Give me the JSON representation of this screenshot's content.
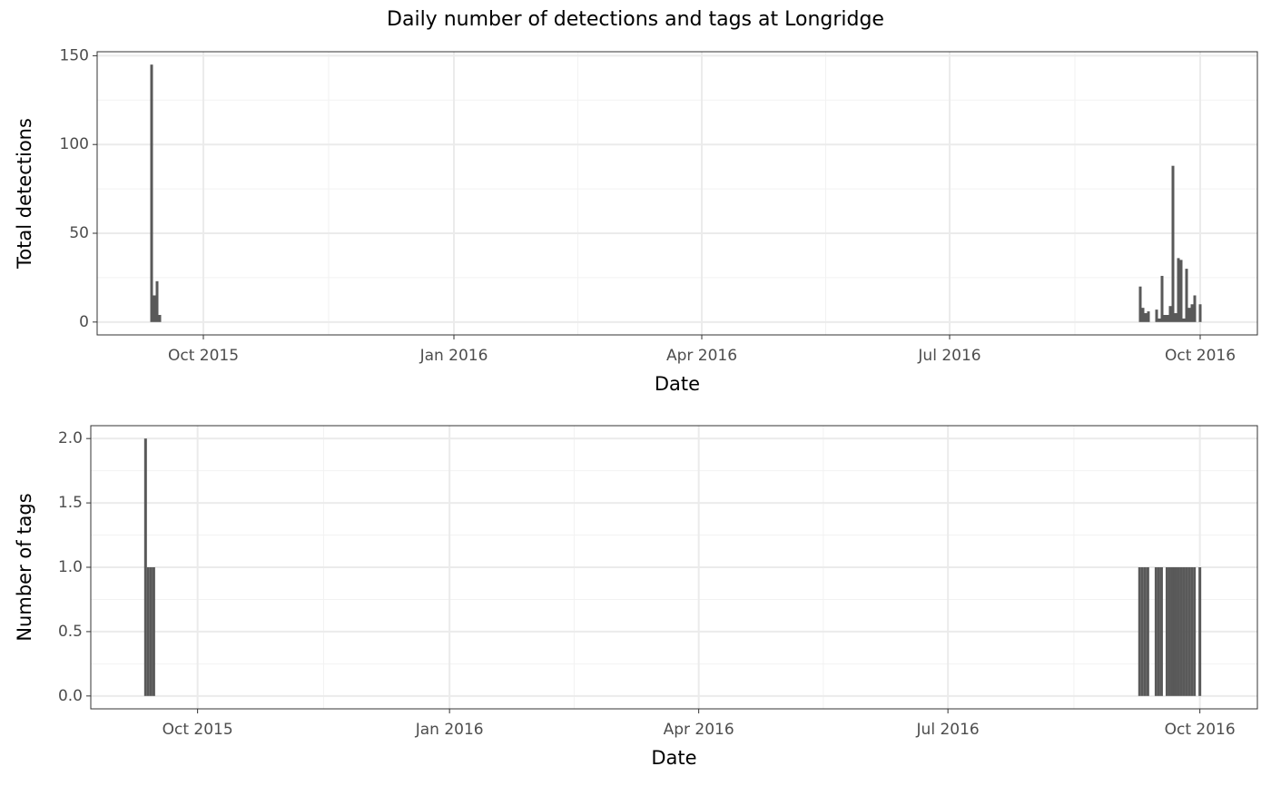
{
  "chart_data": [
    {
      "type": "bar",
      "title": "Daily number of detections and tags at Longridge",
      "x_label": "Date",
      "y_label": "Total detections",
      "color": "#595959",
      "grid": true,
      "x": [
        "2015-09-12",
        "2015-09-13",
        "2015-09-14",
        "2015-09-15",
        "2016-09-09",
        "2016-09-10",
        "2016-09-11",
        "2016-09-12",
        "2016-09-15",
        "2016-09-16",
        "2016-09-17",
        "2016-09-18",
        "2016-09-19",
        "2016-09-20",
        "2016-09-21",
        "2016-09-22",
        "2016-09-23",
        "2016-09-24",
        "2016-09-25",
        "2016-09-26",
        "2016-09-27",
        "2016-09-28",
        "2016-09-29",
        "2016-10-01"
      ],
      "values": [
        145,
        15,
        23,
        4,
        20,
        8,
        5,
        6,
        7,
        2,
        26,
        4,
        4,
        9,
        88,
        5,
        36,
        35,
        2,
        30,
        8,
        10,
        15,
        10
      ],
      "xlim": [
        "2015-08-23",
        "2016-10-22"
      ],
      "xticks": [
        {
          "value": "2015-10-01",
          "label": "Oct 2015"
        },
        {
          "value": "2016-01-01",
          "label": "Jan 2016"
        },
        {
          "value": "2016-04-01",
          "label": "Apr 2016"
        },
        {
          "value": "2016-07-01",
          "label": "Jul 2016"
        },
        {
          "value": "2016-10-01",
          "label": "Oct 2016"
        }
      ],
      "ylim": [
        -7.25,
        152.25
      ],
      "yticks": [
        0,
        50,
        100,
        150
      ]
    },
    {
      "type": "bar",
      "x_label": "Date",
      "y_label": "Number of tags",
      "color": "#595959",
      "grid": true,
      "x": [
        "2015-09-12",
        "2015-09-13",
        "2015-09-14",
        "2015-09-15",
        "2016-09-09",
        "2016-09-10",
        "2016-09-11",
        "2016-09-12",
        "2016-09-15",
        "2016-09-16",
        "2016-09-17",
        "2016-09-19",
        "2016-09-20",
        "2016-09-21",
        "2016-09-22",
        "2016-09-23",
        "2016-09-24",
        "2016-09-25",
        "2016-09-26",
        "2016-09-27",
        "2016-09-28",
        "2016-09-29",
        "2016-10-01"
      ],
      "values": [
        2,
        1,
        1,
        1,
        1,
        1,
        1,
        1,
        1,
        1,
        1,
        1,
        1,
        1,
        1,
        1,
        1,
        1,
        1,
        1,
        1,
        1,
        1
      ],
      "xlim": [
        "2015-08-23",
        "2016-10-22"
      ],
      "xticks": [
        {
          "value": "2015-10-01",
          "label": "Oct 2015"
        },
        {
          "value": "2016-01-01",
          "label": "Jan 2016"
        },
        {
          "value": "2016-04-01",
          "label": "Apr 2016"
        },
        {
          "value": "2016-07-01",
          "label": "Jul 2016"
        },
        {
          "value": "2016-10-01",
          "label": "Oct 2016"
        }
      ],
      "ylim": [
        -0.1,
        2.1
      ],
      "yticks": [
        {
          "value": 0,
          "label": "0.0"
        },
        {
          "value": 0.5,
          "label": "0.5"
        },
        {
          "value": 1,
          "label": "1.0"
        },
        {
          "value": 1.5,
          "label": "1.5"
        },
        {
          "value": 2,
          "label": "2.0"
        }
      ]
    }
  ]
}
